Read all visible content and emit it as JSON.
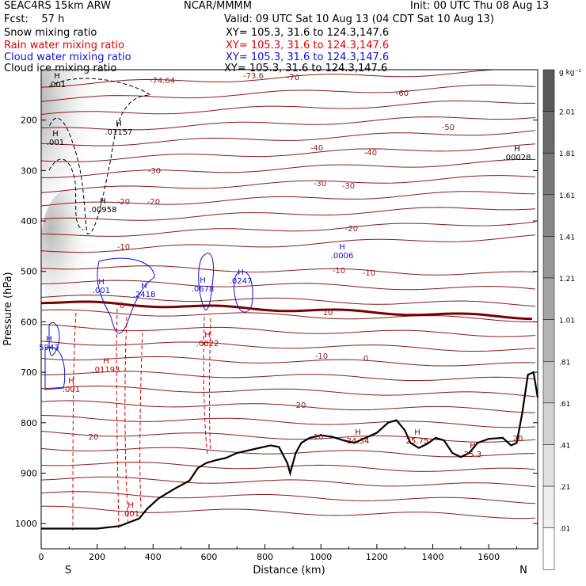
{
  "header": {
    "model": "SEAC4RS 15km ARW",
    "org": "NCAR/MMMM",
    "init": "Init: 00 UTC Thu 08 Aug 13",
    "fcst": "Fcst:    57 h",
    "valid": "Valid: 09 UTC Sat 10 Aug 13 (04 CDT Sat 10 Aug 13)"
  },
  "fields": [
    {
      "name": "Snow mixing ratio",
      "xy": "XY= 105.3, 31.6 to 124.3,147.6",
      "color": "#000000"
    },
    {
      "name": "Rain water mixing ratio",
      "xy": "XY= 105.3, 31.6 to 124.3,147.6",
      "color": "#e00000"
    },
    {
      "name": "Cloud water mixing ratio",
      "xy": "XY= 105.3, 31.6 to 124.3,147.6",
      "color": "#1010d0"
    },
    {
      "name": "Cloud ice mixing ratio",
      "xy": "XY= 105.3, 31.6 to 124.3,147.6",
      "color": "#000000"
    }
  ],
  "chart_data": {
    "type": "contour",
    "xlabel": "Distance (km)",
    "ylabel": "Pressure (hPa)",
    "xlim": [
      0,
      1775
    ],
    "ylim": [
      1050,
      100
    ],
    "x_ticks": [
      0,
      200,
      400,
      600,
      800,
      1000,
      1200,
      1400,
      1600
    ],
    "y_ticks": [
      200,
      300,
      400,
      500,
      600,
      700,
      800,
      900,
      1000
    ],
    "end_labels": {
      "left": "S",
      "right": "N"
    },
    "colorbar": {
      "unit": "g kg⁻¹",
      "levels": [
        "2.01",
        "1.81",
        "1.61",
        "1.41",
        "1.21",
        "1.01",
        ".81",
        ".61",
        ".41",
        ".21",
        ".01"
      ]
    },
    "temperature_labels": [
      "-74.64",
      "-73.6",
      "-70",
      "-60",
      "-50",
      "-40",
      "-40",
      "-30",
      "-30",
      "-30",
      "-20",
      "-20",
      "-20",
      "-10",
      "-10",
      "-10",
      "-10",
      "0",
      "0",
      "10",
      "10",
      "20",
      "20",
      "20"
    ],
    "extrema_labels": [
      {
        "text": ".01157",
        "color": "#000000"
      },
      {
        "text": ".00958",
        "color": "#000000"
      },
      {
        "text": ".00028",
        "color": "#000000"
      },
      {
        "text": ".001",
        "color": "#000000"
      },
      {
        "text": ".001",
        "color": "#000000"
      },
      {
        "text": ".001",
        "color": "#1010d0"
      },
      {
        "text": ".2418",
        "color": "#1010d0"
      },
      {
        "text": ".0678",
        "color": "#1010d0"
      },
      {
        "text": ".0247",
        "color": "#1010d0"
      },
      {
        "text": ".0006",
        "color": "#1010d0"
      },
      {
        "text": "5943",
        "color": "#1010d0"
      },
      {
        "text": ".0022",
        "color": "#c00000"
      },
      {
        "text": ".01193",
        "color": "#c00000"
      },
      {
        "text": ".001",
        "color": "#c00000"
      },
      {
        "text": ".001",
        "color": "#c00000"
      },
      {
        "text": "24.34",
        "color": "#8b0000"
      },
      {
        "text": "25.75",
        "color": "#8b0000"
      },
      {
        "text": "25.3",
        "color": "#8b0000"
      }
    ],
    "terrain": [
      [
        0,
        1010
      ],
      [
        100,
        1010
      ],
      [
        200,
        1010
      ],
      [
        280,
        1005
      ],
      [
        350,
        990
      ],
      [
        380,
        970
      ],
      [
        420,
        950
      ],
      [
        480,
        930
      ],
      [
        530,
        915
      ],
      [
        560,
        890
      ],
      [
        590,
        880
      ],
      [
        620,
        875
      ],
      [
        660,
        870
      ],
      [
        700,
        860
      ],
      [
        740,
        855
      ],
      [
        780,
        850
      ],
      [
        820,
        845
      ],
      [
        850,
        848
      ],
      [
        880,
        880
      ],
      [
        890,
        900
      ],
      [
        910,
        860
      ],
      [
        930,
        840
      ],
      [
        960,
        830
      ],
      [
        1000,
        825
      ],
      [
        1040,
        828
      ],
      [
        1080,
        835
      ],
      [
        1120,
        840
      ],
      [
        1160,
        830
      ],
      [
        1200,
        820
      ],
      [
        1240,
        800
      ],
      [
        1270,
        795
      ],
      [
        1300,
        815
      ],
      [
        1320,
        840
      ],
      [
        1350,
        850
      ],
      [
        1380,
        842
      ],
      [
        1410,
        830
      ],
      [
        1440,
        835
      ],
      [
        1470,
        860
      ],
      [
        1500,
        868
      ],
      [
        1530,
        860
      ],
      [
        1560,
        840
      ],
      [
        1600,
        832
      ],
      [
        1650,
        830
      ],
      [
        1680,
        845
      ],
      [
        1700,
        840
      ],
      [
        1720,
        780
      ],
      [
        1740,
        705
      ],
      [
        1760,
        700
      ],
      [
        1775,
        750
      ]
    ]
  }
}
